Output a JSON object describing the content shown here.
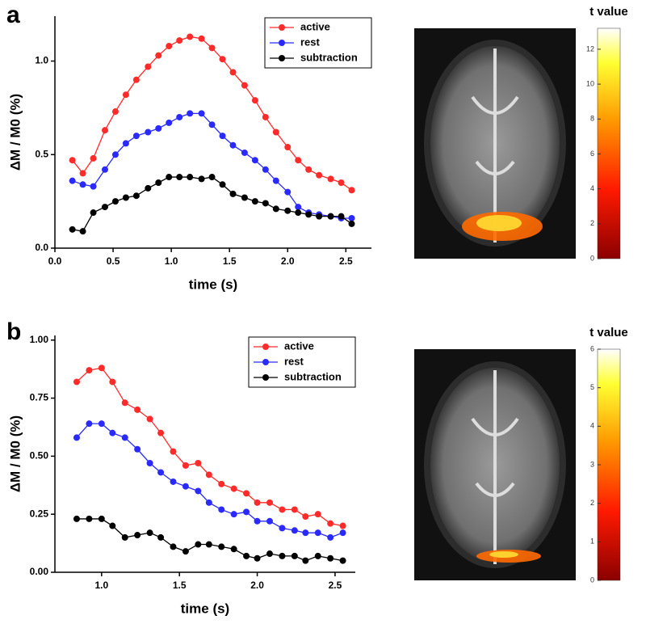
{
  "chart_data": [
    {
      "type": "line",
      "panel": "a",
      "x_label": "time (s)",
      "y_label": "ΔM / M0 (%)",
      "legend": "upper right",
      "x": [
        0.15,
        0.24,
        0.33,
        0.43,
        0.52,
        0.61,
        0.7,
        0.8,
        0.89,
        0.98,
        1.07,
        1.16,
        1.26,
        1.35,
        1.44,
        1.53,
        1.63,
        1.72,
        1.81,
        1.9,
        2.0,
        2.09,
        2.18,
        2.27,
        2.37,
        2.46,
        2.55
      ],
      "series": [
        {
          "name": "active",
          "color": "#ff2a2a",
          "values": [
            0.47,
            0.4,
            0.48,
            0.63,
            0.73,
            0.82,
            0.9,
            0.97,
            1.03,
            1.08,
            1.11,
            1.13,
            1.12,
            1.07,
            1.01,
            0.94,
            0.87,
            0.79,
            0.7,
            0.62,
            0.54,
            0.47,
            0.42,
            0.39,
            0.37,
            0.35,
            0.31
          ]
        },
        {
          "name": "rest",
          "color": "#2a2aff",
          "values": [
            0.36,
            0.34,
            0.33,
            0.42,
            0.5,
            0.56,
            0.6,
            0.62,
            0.64,
            0.67,
            0.7,
            0.72,
            0.72,
            0.66,
            0.6,
            0.55,
            0.51,
            0.47,
            0.42,
            0.36,
            0.3,
            0.22,
            0.19,
            0.18,
            0.17,
            0.16,
            0.16
          ]
        },
        {
          "name": "subtraction",
          "color": "#000000",
          "values": [
            0.1,
            0.09,
            0.19,
            0.22,
            0.25,
            0.27,
            0.28,
            0.32,
            0.35,
            0.38,
            0.38,
            0.38,
            0.37,
            0.38,
            0.34,
            0.29,
            0.27,
            0.25,
            0.24,
            0.21,
            0.2,
            0.19,
            0.18,
            0.17,
            0.17,
            0.17,
            0.13
          ]
        }
      ],
      "xlim": [
        0,
        2.72
      ],
      "ylim": [
        0,
        1.24
      ],
      "xticks": [
        {
          "value": 0,
          "label": "0.0"
        },
        0.5,
        {
          "value": 1,
          "label": "1.0"
        },
        1.5,
        {
          "value": 2,
          "label": "2.0"
        },
        2.5
      ],
      "yticks": [
        {
          "value": 0,
          "label": "0.0"
        },
        0.5,
        {
          "value": 1,
          "label": "1.0"
        }
      ],
      "colorbar_title": "t value",
      "colorbar_lim": [
        0,
        13.2
      ],
      "colorbar_ticks": [
        0,
        2,
        4,
        6,
        8,
        10,
        12
      ]
    },
    {
      "type": "line",
      "panel": "b",
      "x_label": "time (s)",
      "y_label": "ΔM / M0 (%)",
      "legend": "upper right",
      "x": [
        0.84,
        0.92,
        1.0,
        1.07,
        1.15,
        1.23,
        1.31,
        1.38,
        1.46,
        1.54,
        1.62,
        1.69,
        1.77,
        1.85,
        1.93,
        2.0,
        2.08,
        2.16,
        2.24,
        2.31,
        2.39,
        2.47,
        2.55
      ],
      "series": [
        {
          "name": "active",
          "color": "#ff2a2a",
          "values": [
            0.82,
            0.87,
            0.88,
            0.82,
            0.73,
            0.7,
            0.66,
            0.6,
            0.52,
            0.46,
            0.47,
            0.42,
            0.38,
            0.36,
            0.34,
            0.3,
            0.3,
            0.27,
            0.27,
            0.24,
            0.25,
            0.21,
            0.2
          ]
        },
        {
          "name": "rest",
          "color": "#2a2aff",
          "values": [
            0.58,
            0.64,
            0.64,
            0.6,
            0.58,
            0.53,
            0.47,
            0.43,
            0.39,
            0.37,
            0.35,
            0.3,
            0.27,
            0.25,
            0.26,
            0.22,
            0.22,
            0.19,
            0.18,
            0.17,
            0.17,
            0.15,
            0.17
          ]
        },
        {
          "name": "subtraction",
          "color": "#000000",
          "values": [
            0.23,
            0.23,
            0.23,
            0.2,
            0.15,
            0.16,
            0.17,
            0.15,
            0.11,
            0.09,
            0.12,
            0.12,
            0.11,
            0.1,
            0.07,
            0.06,
            0.08,
            0.07,
            0.07,
            0.05,
            0.07,
            0.06,
            0.05
          ]
        }
      ],
      "xlim": [
        0.7,
        2.63
      ],
      "ylim": [
        0,
        1.02
      ],
      "xticks": [
        {
          "value": 1,
          "label": "1.0"
        },
        1.5,
        {
          "value": 2,
          "label": "2.0"
        },
        2.5
      ],
      "yticks": [
        {
          "value": 0,
          "label": "0.00"
        },
        {
          "value": 0.25,
          "label": "0.25"
        },
        {
          "value": 0.5,
          "label": "0.50"
        },
        {
          "value": 0.75,
          "label": "0.75"
        },
        {
          "value": 1,
          "label": "1.00"
        }
      ],
      "colorbar_title": "t value",
      "colorbar_lim": [
        0,
        6
      ],
      "colorbar_ticks": [
        0,
        1,
        2,
        3,
        4,
        5,
        6
      ]
    }
  ]
}
